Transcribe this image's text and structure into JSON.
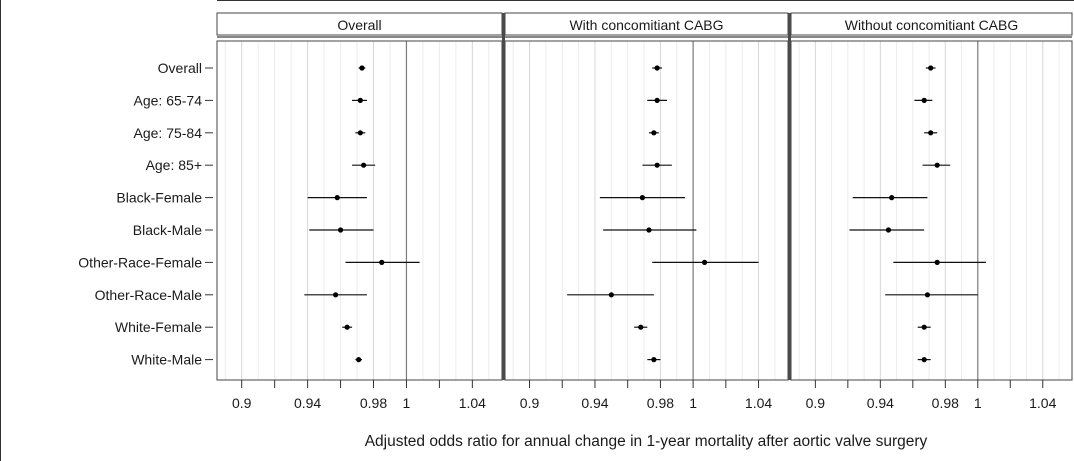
{
  "chart_data": {
    "type": "forest",
    "title": "",
    "xlabel": "Adjusted odds ratio for annual change in 1-year mortality after aortic valve surgery",
    "ylabel": "",
    "xlim": [
      0.885,
      1.058
    ],
    "reference_line": 1.0,
    "x_ticks": [
      0.9,
      0.94,
      0.98,
      1.0,
      1.04
    ],
    "x_tick_labels": [
      "0.9",
      "0.94",
      "0.98",
      "1",
      "1.04"
    ],
    "grid": true,
    "categories": [
      "Overall",
      "Age: 65-74",
      "Age: 75-84",
      "Age: 85+",
      "Black-Female",
      "Black-Male",
      "Other-Race-Female",
      "Other-Race-Male",
      "White-Female",
      "White-Male"
    ],
    "panels": [
      {
        "name": "Overall",
        "estimates": [
          0.973,
          0.972,
          0.972,
          0.974,
          0.958,
          0.96,
          0.985,
          0.957,
          0.964,
          0.971
        ],
        "lower": [
          0.971,
          0.967,
          0.969,
          0.967,
          0.94,
          0.941,
          0.963,
          0.938,
          0.961,
          0.969
        ],
        "upper": [
          0.975,
          0.976,
          0.975,
          0.981,
          0.976,
          0.98,
          1.008,
          0.976,
          0.967,
          0.973
        ]
      },
      {
        "name": "With concomitiant CABG",
        "estimates": [
          0.978,
          0.978,
          0.976,
          0.978,
          0.969,
          0.973,
          1.007,
          0.95,
          0.968,
          0.976
        ],
        "lower": [
          0.975,
          0.972,
          0.973,
          0.969,
          0.943,
          0.945,
          0.975,
          0.923,
          0.964,
          0.972
        ],
        "upper": [
          0.981,
          0.984,
          0.979,
          0.987,
          0.995,
          1.002,
          1.04,
          0.976,
          0.972,
          0.98
        ]
      },
      {
        "name": "Without concomitiant CABG",
        "estimates": [
          0.971,
          0.967,
          0.971,
          0.975,
          0.947,
          0.945,
          0.975,
          0.969,
          0.967,
          0.967
        ],
        "lower": [
          0.968,
          0.961,
          0.967,
          0.966,
          0.923,
          0.921,
          0.948,
          0.943,
          0.963,
          0.963
        ],
        "upper": [
          0.974,
          0.972,
          0.975,
          0.983,
          0.969,
          0.967,
          1.005,
          1.0,
          0.971,
          0.971
        ]
      }
    ]
  }
}
